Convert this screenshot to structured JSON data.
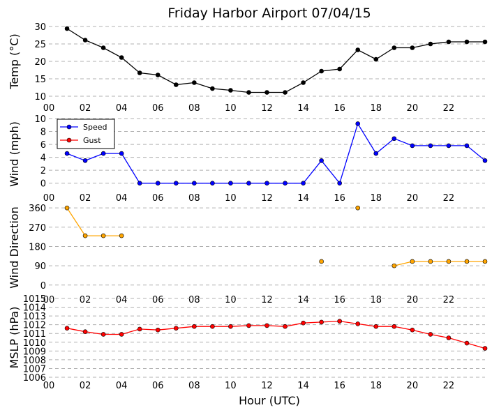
{
  "title": "Friday Harbor Airport 07/04/15",
  "xlabel": "Hour (UTC)",
  "colors": {
    "temp": "#000000",
    "speed": "#0000ff",
    "gust": "#ff0000",
    "dir": "#ffa500",
    "mslp": "#ff0000",
    "grid": "#b0b0b0"
  },
  "chart_data": [
    {
      "type": "line",
      "ylabel": "Temp (°C)",
      "xlim": [
        0,
        24
      ],
      "ylim": [
        9,
        31
      ],
      "yticks": [
        10,
        15,
        20,
        25,
        30
      ],
      "xticks": [
        "00",
        "02",
        "04",
        "06",
        "08",
        "10",
        "12",
        "14",
        "16",
        "18",
        "20",
        "22"
      ],
      "series": [
        {
          "key": "temp",
          "x": [
            1,
            2,
            3,
            4,
            5,
            6,
            7,
            8,
            9,
            10,
            11,
            12,
            13,
            14,
            15,
            16,
            17,
            18,
            19,
            20,
            21,
            22,
            23,
            24
          ],
          "values": [
            29.4,
            26.1,
            23.9,
            21.1,
            16.7,
            16.1,
            13.3,
            13.9,
            12.2,
            11.7,
            11.1,
            11.1,
            11.1,
            13.9,
            17.2,
            17.8,
            23.3,
            20.6,
            23.9,
            23.9,
            25.0,
            25.6,
            25.6,
            25.6
          ]
        }
      ]
    },
    {
      "type": "line",
      "ylabel": "Wind (mph)",
      "xlim": [
        0,
        24
      ],
      "ylim": [
        -1,
        10
      ],
      "yticks": [
        0,
        2,
        4,
        6,
        8,
        10
      ],
      "xticks": [
        "00",
        "02",
        "04",
        "06",
        "08",
        "10",
        "12",
        "14",
        "16",
        "18",
        "20",
        "22"
      ],
      "legend": {
        "placement": "top-left",
        "entries": [
          "Speed",
          "Gust"
        ]
      },
      "series": [
        {
          "key": "speed",
          "name": "Speed",
          "x": [
            1,
            2,
            3,
            4,
            5,
            6,
            7,
            8,
            9,
            10,
            11,
            12,
            13,
            14,
            15,
            16,
            17,
            18,
            19,
            20,
            21,
            22,
            23,
            24
          ],
          "values": [
            4.6,
            3.5,
            4.6,
            4.6,
            0,
            0,
            0,
            0,
            0,
            0,
            0,
            0,
            0,
            0,
            3.5,
            0,
            9.2,
            4.6,
            6.9,
            5.8,
            5.8,
            5.8,
            5.8,
            3.5
          ]
        },
        {
          "key": "gust",
          "name": "Gust",
          "x": [],
          "values": []
        }
      ]
    },
    {
      "type": "line",
      "ylabel": "Wind Direction",
      "xlim": [
        0,
        24
      ],
      "ylim": [
        -30,
        380
      ],
      "yticks": [
        0,
        90,
        180,
        270,
        360
      ],
      "xticks": [
        "00",
        "02",
        "04",
        "06",
        "08",
        "10",
        "12",
        "14",
        "16",
        "18",
        "20",
        "22"
      ],
      "series": [
        {
          "key": "dir",
          "segments": [
            {
              "x": [
                1,
                2,
                3,
                4
              ],
              "values": [
                360,
                230,
                230,
                230
              ]
            },
            {
              "x": [
                15
              ],
              "values": [
                110
              ]
            },
            {
              "x": [
                17
              ],
              "values": [
                360
              ]
            },
            {
              "x": [
                19,
                20,
                21,
                22,
                23,
                24
              ],
              "values": [
                90,
                110,
                110,
                110,
                110,
                110
              ]
            }
          ]
        }
      ]
    },
    {
      "type": "line",
      "ylabel": "MSLP (hPa)",
      "xlim": [
        0,
        24
      ],
      "ylim": [
        1006,
        1015
      ],
      "yticks": [
        1006,
        1007,
        1008,
        1009,
        1010,
        1011,
        1012,
        1013,
        1014,
        1015
      ],
      "xticks": [
        "00",
        "02",
        "04",
        "06",
        "08",
        "10",
        "12",
        "14",
        "16",
        "18",
        "20",
        "22"
      ],
      "series": [
        {
          "key": "mslp",
          "x": [
            1,
            2,
            3,
            4,
            5,
            6,
            7,
            8,
            9,
            10,
            11,
            12,
            13,
            14,
            15,
            16,
            17,
            18,
            19,
            20,
            21,
            22,
            23,
            24
          ],
          "values": [
            1011.6,
            1011.2,
            1010.9,
            1010.9,
            1011.5,
            1011.4,
            1011.6,
            1011.8,
            1011.8,
            1011.8,
            1011.9,
            1011.9,
            1011.8,
            1012.2,
            1012.3,
            1012.4,
            1012.1,
            1011.8,
            1011.8,
            1011.4,
            1010.9,
            1010.5,
            1009.9,
            1009.3
          ]
        }
      ]
    }
  ]
}
